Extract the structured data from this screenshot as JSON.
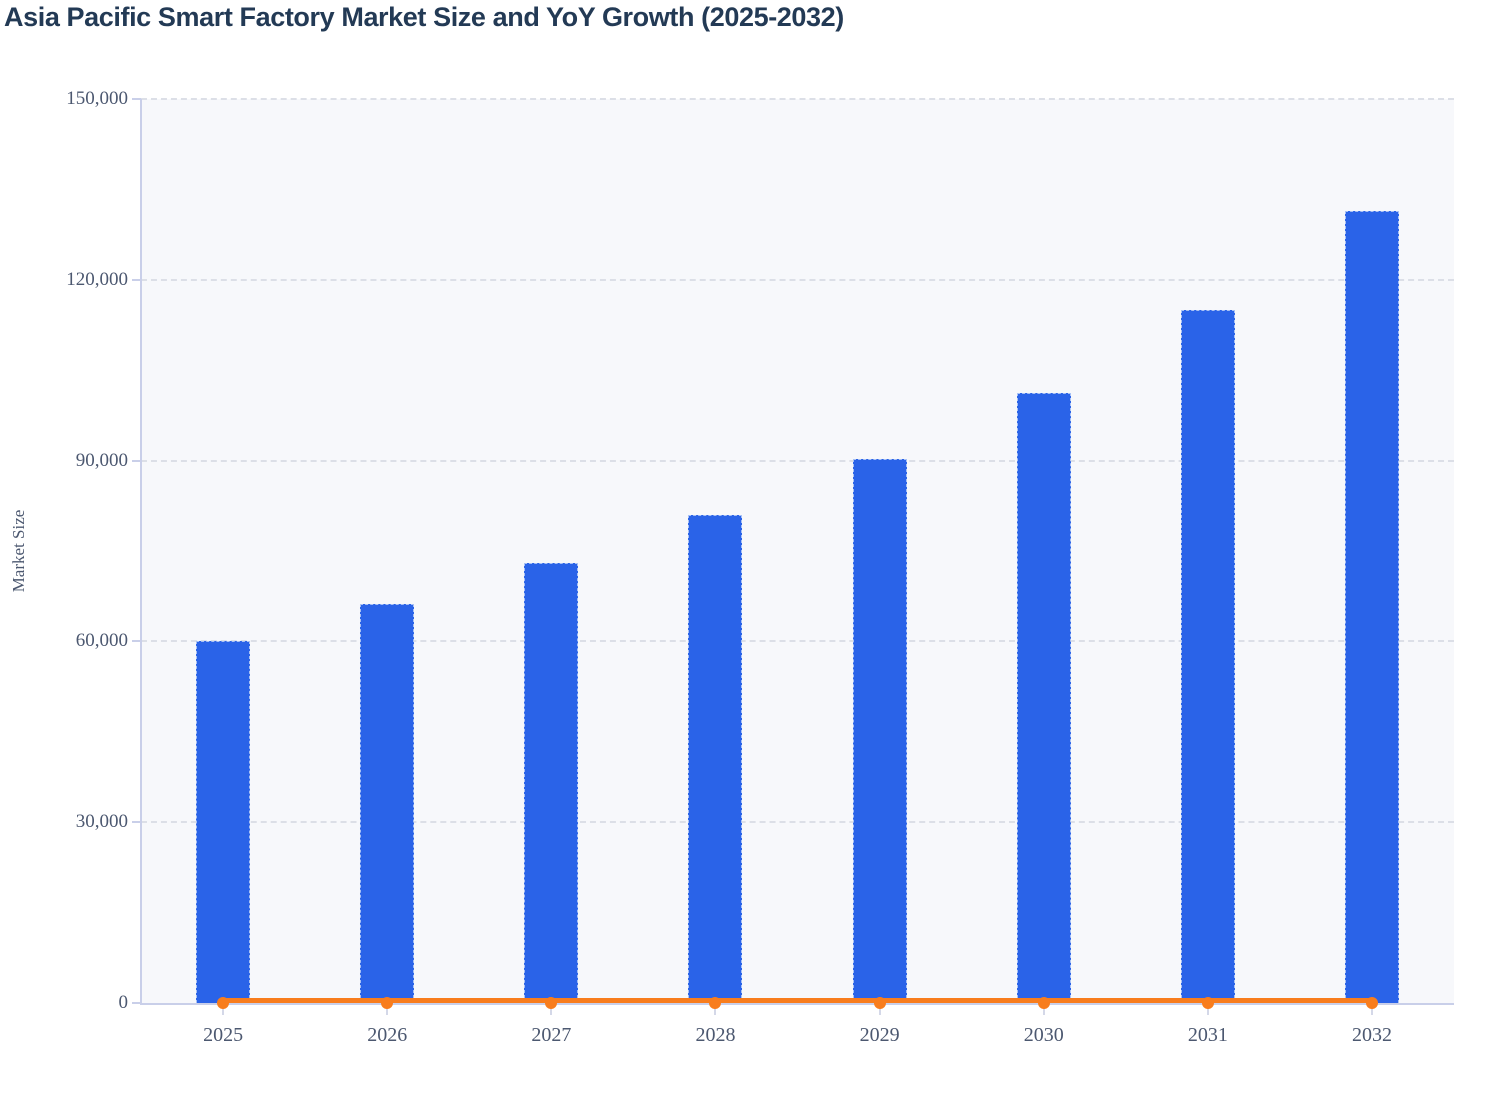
{
  "title": "Asia Pacific Smart Factory Market Size and YoY Growth (2025-2032)",
  "chart_data": {
    "type": "bar",
    "subtype": "bar-line-combo",
    "title": "Asia Pacific Smart Factory Market Size and YoY Growth (2025-2032)",
    "xlabel": "",
    "ylabel": "Market Size",
    "categories": [
      "2025",
      "2026",
      "2027",
      "2028",
      "2029",
      "2030",
      "2031",
      "2032"
    ],
    "series": [
      {
        "name": "Market Size",
        "type": "bar",
        "color": "#2a63e8",
        "values": [
          60000,
          66200,
          73000,
          81000,
          90200,
          101300,
          115000,
          131400
        ]
      },
      {
        "name": "YoY Growth",
        "type": "line",
        "color": "#f87d1d",
        "values": [
          0,
          0,
          0,
          0,
          0,
          0,
          0,
          0
        ],
        "note": "line renders flat along the zero baseline of the Market Size axis; growth values are not labeled in the image"
      }
    ],
    "ylim": [
      0,
      150000
    ],
    "yticks": [
      0,
      30000,
      60000,
      90000,
      120000,
      150000
    ],
    "ytick_labels": [
      "0",
      "30,000",
      "60,000",
      "90,000",
      "120,000",
      "150,000"
    ],
    "grid": "horizontal dashed gridlines",
    "legend": "none"
  },
  "colors": {
    "bar": "#2a63e8",
    "bar_border": "#a9c2f5",
    "line": "#f87d1d",
    "plot_background": "#f7f8fb",
    "page_background": "#ffffff",
    "gridline": "#dcdfe7",
    "axis_line": "#c9cfe9",
    "title_text": "#233a55",
    "tick_text": "#4c5870"
  }
}
